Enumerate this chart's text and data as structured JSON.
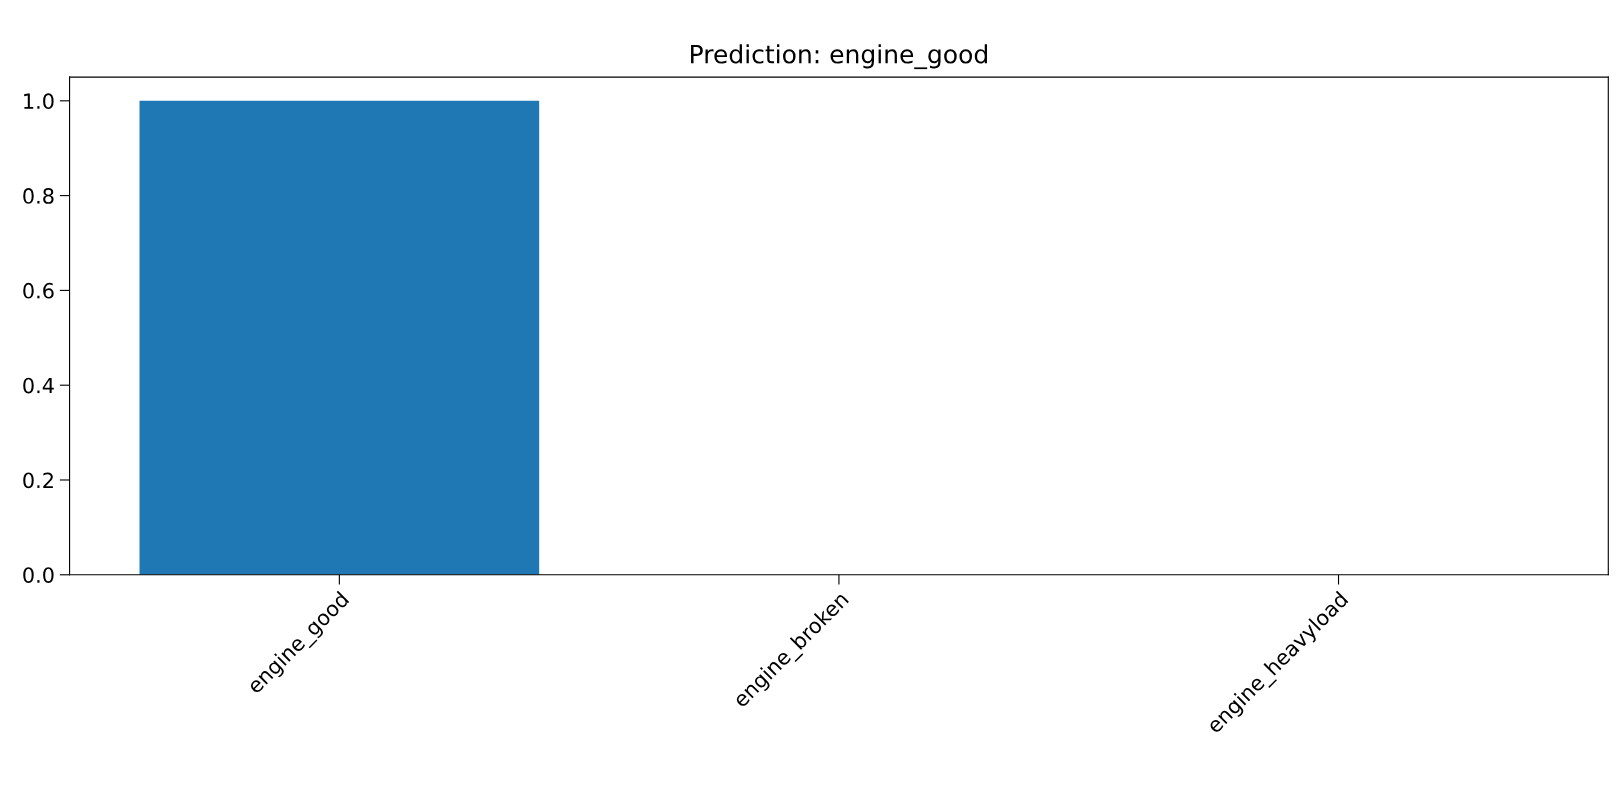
{
  "chart_data": {
    "type": "bar",
    "title": "Prediction: engine_good",
    "categories": [
      "engine_good",
      "engine_broken",
      "engine_heavyload"
    ],
    "values": [
      1.0,
      0.0,
      0.0
    ],
    "color": "#1f77b4",
    "ylim": [
      0,
      1.05
    ],
    "yticks": [
      {
        "value": 0,
        "label": "0.0"
      },
      {
        "value": 0.2,
        "label": "0.2"
      },
      {
        "value": 0.4,
        "label": "0.4"
      },
      {
        "value": 0.6,
        "label": "0.6"
      },
      {
        "value": 0.8,
        "label": "0.8"
      },
      {
        "value": 1.0,
        "label": "1.0"
      }
    ],
    "grid": false,
    "legend": false
  }
}
